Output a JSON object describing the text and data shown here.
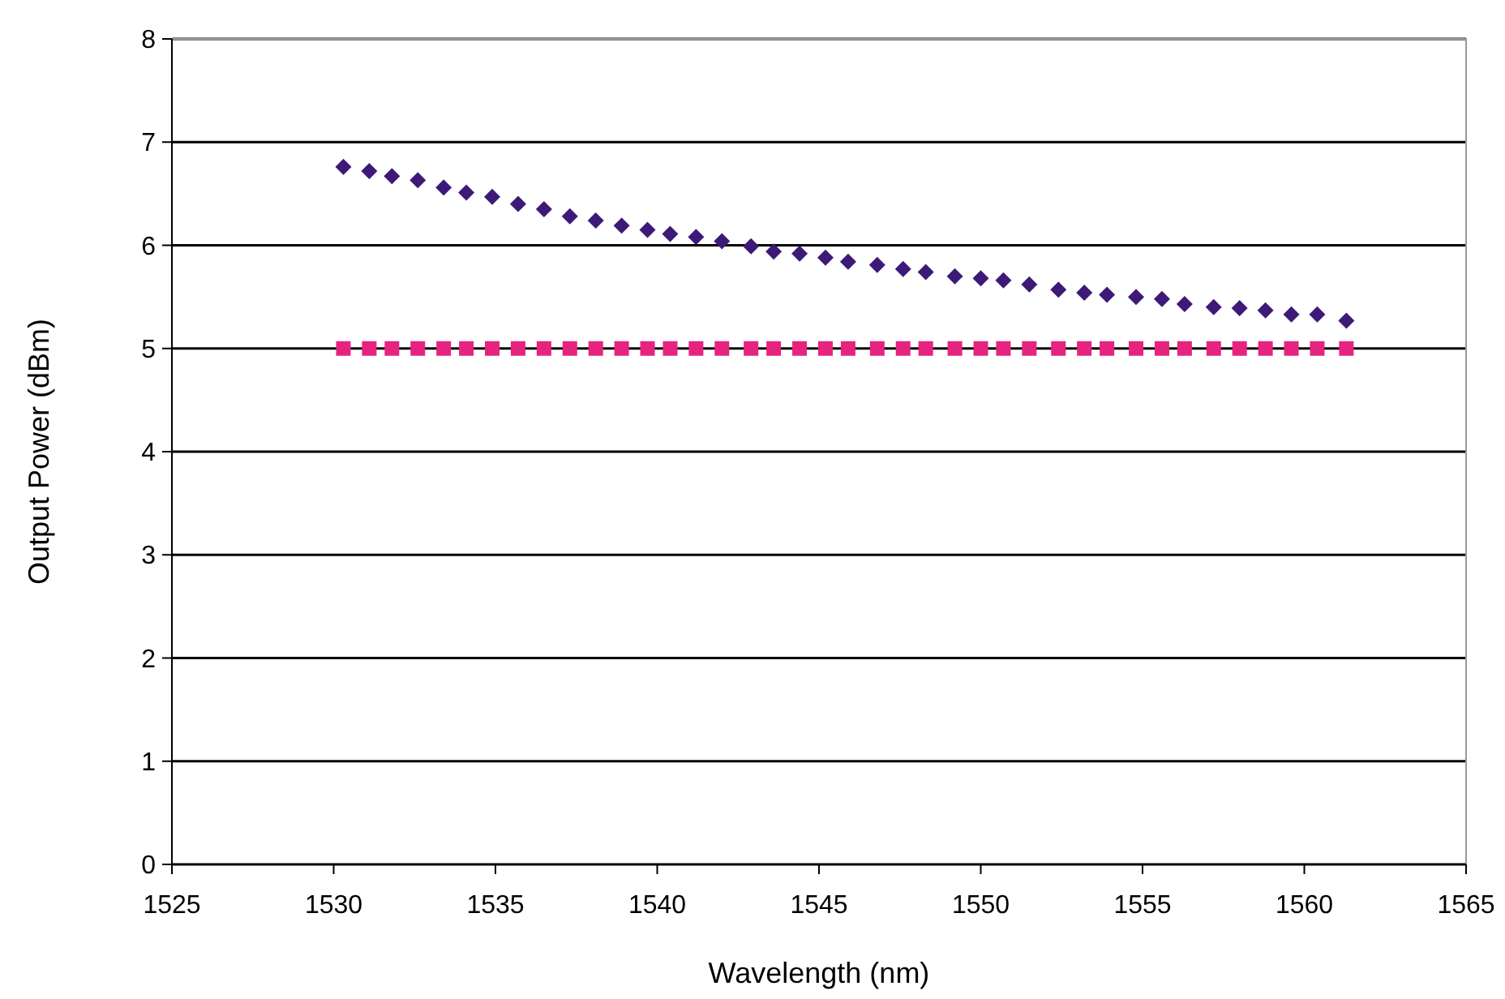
{
  "chart_data": {
    "type": "scatter",
    "xlabel": "Wavelength (nm)",
    "ylabel": "Output Power (dBm)",
    "x": [
      1530.3,
      1531.1,
      1531.8,
      1532.6,
      1533.4,
      1534.1,
      1534.9,
      1535.7,
      1536.5,
      1537.3,
      1538.1,
      1538.9,
      1539.7,
      1540.4,
      1541.2,
      1542.0,
      1542.9,
      1543.6,
      1544.4,
      1545.2,
      1545.9,
      1546.8,
      1547.6,
      1548.3,
      1549.2,
      1550.0,
      1550.7,
      1551.5,
      1552.4,
      1553.2,
      1553.9,
      1554.8,
      1555.6,
      1556.3,
      1557.2,
      1558.0,
      1558.8,
      1559.6,
      1560.4,
      1561.3
    ],
    "series": [
      {
        "color": "#3d1a78",
        "marker": "diamond",
        "values": [
          6.76,
          6.72,
          6.67,
          6.63,
          6.56,
          6.51,
          6.47,
          6.4,
          6.35,
          6.28,
          6.24,
          6.19,
          6.15,
          6.11,
          6.08,
          6.04,
          5.99,
          5.94,
          5.92,
          5.88,
          5.84,
          5.81,
          5.77,
          5.74,
          5.7,
          5.68,
          5.66,
          5.62,
          5.57,
          5.54,
          5.52,
          5.5,
          5.48,
          5.43,
          5.4,
          5.39,
          5.37,
          5.33,
          5.33,
          5.27
        ]
      },
      {
        "color": "#e6247f",
        "marker": "square",
        "values": [
          5,
          5,
          5,
          5,
          5,
          5,
          5,
          5,
          5,
          5,
          5,
          5,
          5,
          5,
          5,
          5,
          5,
          5,
          5,
          5,
          5,
          5,
          5,
          5,
          5,
          5,
          5,
          5,
          5,
          5,
          5,
          5,
          5,
          5,
          5,
          5,
          5,
          5,
          5,
          5
        ]
      }
    ],
    "xlim": [
      1525,
      1565
    ],
    "xticks": [
      1525,
      1530,
      1535,
      1540,
      1545,
      1550,
      1555,
      1560,
      1565
    ],
    "ylim": [
      0,
      8
    ],
    "yticks": [
      0,
      1,
      2,
      3,
      4,
      5,
      6,
      7,
      8
    ],
    "grid": "y"
  }
}
